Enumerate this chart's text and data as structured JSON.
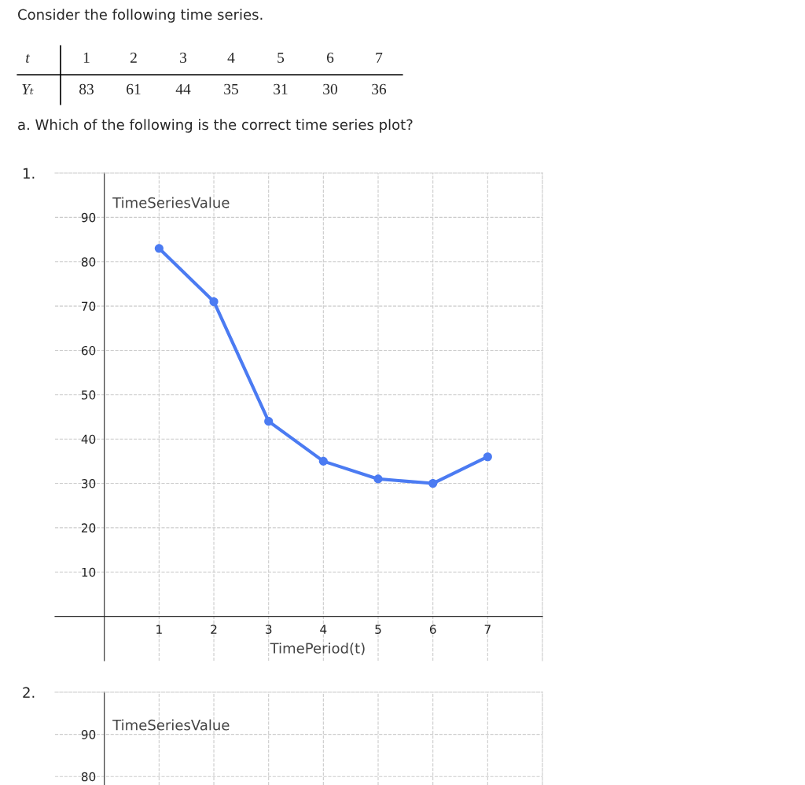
{
  "chart_data": [
    {
      "type": "line",
      "xlabel": "TimePeriod(t)",
      "ylabel": "TimeSeriesValue",
      "annotations": [
        "Consider the following time series.",
        "t",
        "1",
        "2",
        "3",
        "4",
        "5",
        "6",
        "7",
        "Yₜ",
        "83",
        "61",
        "44",
        "35",
        "31",
        "30",
        "36",
        "a. Which of the following is the correct time series plot?",
        "1."
      ],
      "x": [
        1,
        2,
        3,
        4,
        5,
        6,
        7
      ],
      "series": [
        {
          "color": "#4b7bf2",
          "values": [
            83,
            71,
            44,
            35,
            31,
            30,
            36
          ]
        }
      ],
      "xlim": [
        -0.9,
        8
      ],
      "ylim": [
        -10,
        100
      ],
      "xticks": [
        1,
        2,
        3,
        4,
        5,
        6,
        7
      ],
      "yticks": [
        10,
        20,
        30,
        40,
        50,
        60,
        70,
        80,
        90
      ],
      "grid": true,
      "marker": "circle",
      "line_style": "solid",
      "legend": false
    },
    {
      "type": "line",
      "ylabel": "TimeSeriesValue",
      "annotations": [
        "2."
      ],
      "xlim": [
        -0.9,
        8
      ],
      "ylim": [
        78,
        100
      ],
      "xticks": [
        1,
        2,
        3,
        4,
        5,
        6,
        7
      ],
      "yticks": [
        80,
        90
      ],
      "grid": true,
      "tick_labels": "y",
      "legend": false
    }
  ]
}
